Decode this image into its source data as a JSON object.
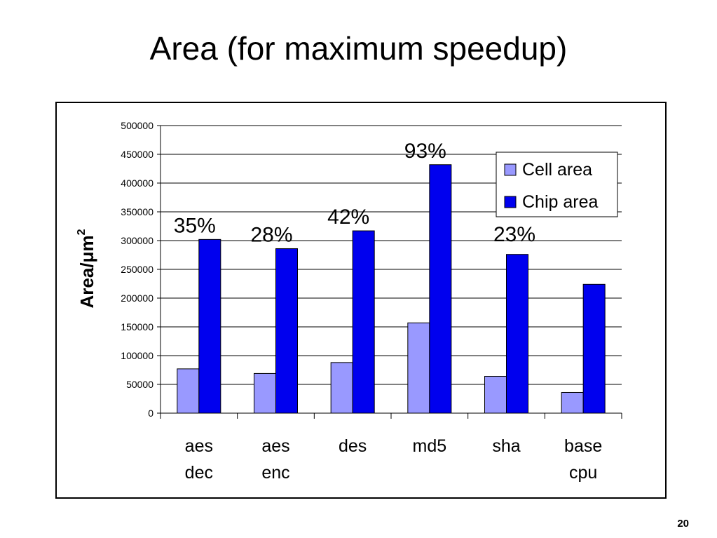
{
  "slide": {
    "title": "Area (for maximum speedup)",
    "page_number": "20"
  },
  "chart_data": {
    "type": "bar",
    "title": "",
    "ylabel": "Area/μm",
    "ylabel_superscript": "2",
    "xlabel": "",
    "ylim": [
      0,
      500000
    ],
    "yticks": [
      "0",
      "50000",
      "100000",
      "150000",
      "200000",
      "250000",
      "300000",
      "350000",
      "400000",
      "450000",
      "500000"
    ],
    "grid": true,
    "legend": "top-right",
    "categories": [
      [
        "aes",
        "dec"
      ],
      [
        "aes",
        "enc"
      ],
      [
        "des"
      ],
      [
        "md5"
      ],
      [
        "sha"
      ],
      [
        "base",
        "cpu"
      ]
    ],
    "series": [
      {
        "name": "Cell area",
        "color": "#9999ff",
        "values": [
          77000,
          69000,
          88000,
          157000,
          64000,
          36000
        ]
      },
      {
        "name": "Chip area",
        "color": "#0000ee",
        "values": [
          302000,
          286000,
          317000,
          432000,
          276000,
          224000
        ]
      }
    ],
    "annotations": [
      "35%",
      "28%",
      "42%",
      "93%",
      "23%",
      ""
    ]
  }
}
